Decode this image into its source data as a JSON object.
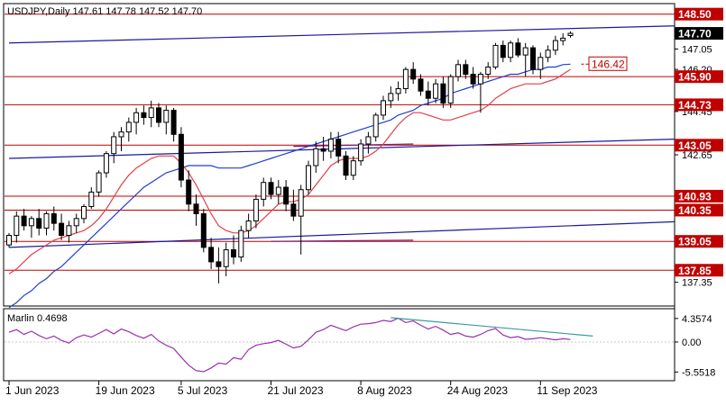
{
  "chart_data": {
    "type": "candlestick",
    "symbol_header": "USDJPY,Daily  147.61 147.78 147.52 147.70",
    "price_axis": {
      "min": 136.4,
      "max": 148.9,
      "ticks": [
        "147.05",
        "146.20",
        "144.45",
        "142.65",
        "137.35"
      ],
      "tick_values": [
        147.05,
        146.2,
        144.45,
        142.65,
        137.35
      ]
    },
    "current_price": {
      "label": "147.70",
      "value": 147.7
    },
    "horizontal_levels": [
      {
        "label": "148.50",
        "value": 148.5
      },
      {
        "label": "145.90",
        "value": 145.9
      },
      {
        "label": "144.73",
        "value": 144.73
      },
      {
        "label": "143.05",
        "value": 143.05
      },
      {
        "label": "140.93",
        "value": 140.93
      },
      {
        "label": "140.35",
        "value": 140.35
      },
      {
        "label": "139.05",
        "value": 139.05
      },
      {
        "label": "137.85",
        "value": 137.85
      }
    ],
    "target_annotation": {
      "label": "146.42",
      "value": 146.42
    },
    "date_labels": [
      {
        "label": "1 Jun 2023",
        "index": 0
      },
      {
        "label": "19 Jun 2023",
        "index": 12
      },
      {
        "label": "5 Jul 2023",
        "index": 23
      },
      {
        "label": "21 Jul 2023",
        "index": 35
      },
      {
        "label": "8 Aug 2023",
        "index": 47
      },
      {
        "label": "24 Aug 2023",
        "index": 59
      },
      {
        "label": "11 Sep 2023",
        "index": 71
      }
    ],
    "candles": [
      [
        138.9,
        139.4,
        138.8,
        139.3
      ],
      [
        139.3,
        140.3,
        139.0,
        140.1
      ],
      [
        140.1,
        140.4,
        139.5,
        139.7
      ],
      [
        139.7,
        140.1,
        139.2,
        140.0
      ],
      [
        140.0,
        140.4,
        139.3,
        139.6
      ],
      [
        139.6,
        140.3,
        139.3,
        140.2
      ],
      [
        140.2,
        140.5,
        139.5,
        139.8
      ],
      [
        139.8,
        140.2,
        139.1,
        139.3
      ],
      [
        139.3,
        139.9,
        139.0,
        139.7
      ],
      [
        139.7,
        140.2,
        139.4,
        140.0
      ],
      [
        140.0,
        140.6,
        139.8,
        140.5
      ],
      [
        140.5,
        141.3,
        140.4,
        141.1
      ],
      [
        141.1,
        142.0,
        140.9,
        141.9
      ],
      [
        141.9,
        142.8,
        141.7,
        142.7
      ],
      [
        142.7,
        143.6,
        142.3,
        143.4
      ],
      [
        143.4,
        143.8,
        142.8,
        143.6
      ],
      [
        143.6,
        144.2,
        143.2,
        144.0
      ],
      [
        144.0,
        144.6,
        143.5,
        144.4
      ],
      [
        144.4,
        144.7,
        143.9,
        144.2
      ],
      [
        144.2,
        144.9,
        143.8,
        144.6
      ],
      [
        144.6,
        144.8,
        143.8,
        144.0
      ],
      [
        144.0,
        144.7,
        143.5,
        144.5
      ],
      [
        144.5,
        144.6,
        143.2,
        143.5
      ],
      [
        143.5,
        143.8,
        141.3,
        141.6
      ],
      [
        141.6,
        142.0,
        140.3,
        140.6
      ],
      [
        140.6,
        141.0,
        139.7,
        140.2
      ],
      [
        140.2,
        140.4,
        138.6,
        138.8
      ],
      [
        138.8,
        139.2,
        137.9,
        138.2
      ],
      [
        138.2,
        138.8,
        137.3,
        138.0
      ],
      [
        138.0,
        139.0,
        137.6,
        138.7
      ],
      [
        138.7,
        139.3,
        138.1,
        138.4
      ],
      [
        138.4,
        139.7,
        138.2,
        139.5
      ],
      [
        139.5,
        140.2,
        139.2,
        139.9
      ],
      [
        139.9,
        141.0,
        139.6,
        140.8
      ],
      [
        140.8,
        141.7,
        140.5,
        141.5
      ],
      [
        141.5,
        141.7,
        140.8,
        141.0
      ],
      [
        141.0,
        141.6,
        140.6,
        141.3
      ],
      [
        141.3,
        141.6,
        140.3,
        140.6
      ],
      [
        140.6,
        141.2,
        139.9,
        140.1
      ],
      [
        140.1,
        141.4,
        138.5,
        141.2
      ],
      [
        141.2,
        142.4,
        141.0,
        142.2
      ],
      [
        142.2,
        143.2,
        141.9,
        142.9
      ],
      [
        142.9,
        143.4,
        142.4,
        142.8
      ],
      [
        142.8,
        143.6,
        142.5,
        143.3
      ],
      [
        143.3,
        143.6,
        142.3,
        142.6
      ],
      [
        142.6,
        142.8,
        141.6,
        141.8
      ],
      [
        141.8,
        142.6,
        141.6,
        142.4
      ],
      [
        142.4,
        143.3,
        142.2,
        143.1
      ],
      [
        143.1,
        143.6,
        142.7,
        143.4
      ],
      [
        143.4,
        144.4,
        143.2,
        144.3
      ],
      [
        144.3,
        145.1,
        144.1,
        144.9
      ],
      [
        144.9,
        145.5,
        144.6,
        145.2
      ],
      [
        145.2,
        145.7,
        144.9,
        145.4
      ],
      [
        145.4,
        146.3,
        145.2,
        146.2
      ],
      [
        146.2,
        146.5,
        145.6,
        145.8
      ],
      [
        145.8,
        146.0,
        145.1,
        145.3
      ],
      [
        145.3,
        145.7,
        144.7,
        145.0
      ],
      [
        145.0,
        145.8,
        144.8,
        145.6
      ],
      [
        145.6,
        145.9,
        144.6,
        144.8
      ],
      [
        144.8,
        146.0,
        144.6,
        145.9
      ],
      [
        145.9,
        146.6,
        145.7,
        146.4
      ],
      [
        146.4,
        146.6,
        145.8,
        146.0
      ],
      [
        146.0,
        146.3,
        145.4,
        145.6
      ],
      [
        145.6,
        146.1,
        144.4,
        146.0
      ],
      [
        146.0,
        146.5,
        145.8,
        146.3
      ],
      [
        146.3,
        147.3,
        146.2,
        147.2
      ],
      [
        147.2,
        147.4,
        146.5,
        146.7
      ],
      [
        146.7,
        147.4,
        146.5,
        147.3
      ],
      [
        147.3,
        147.5,
        146.7,
        146.8
      ],
      [
        146.8,
        147.3,
        145.9,
        147.1
      ],
      [
        147.1,
        147.2,
        146.0,
        146.2
      ],
      [
        146.2,
        146.9,
        145.8,
        146.7
      ],
      [
        146.7,
        147.2,
        146.5,
        147.0
      ],
      [
        147.0,
        147.6,
        146.8,
        147.4
      ],
      [
        147.4,
        147.7,
        147.2,
        147.5
      ],
      [
        147.61,
        147.78,
        147.52,
        147.7
      ]
    ],
    "red_ma": [
      137.7,
      137.9,
      138.2,
      138.5,
      138.7,
      138.9,
      139.1,
      139.2,
      139.3,
      139.4,
      139.5,
      139.7,
      140.0,
      140.4,
      140.9,
      141.4,
      141.8,
      142.1,
      142.3,
      142.5,
      142.6,
      142.6,
      142.6,
      142.3,
      141.9,
      141.4,
      140.8,
      140.2,
      139.7,
      139.5,
      139.4,
      139.4,
      139.5,
      139.7,
      140.0,
      140.3,
      140.6,
      140.7,
      140.7,
      140.8,
      141.0,
      141.4,
      141.8,
      142.2,
      142.4,
      142.5,
      142.5,
      142.5,
      142.6,
      142.8,
      143.1,
      143.5,
      143.9,
      144.2,
      144.4,
      144.4,
      144.3,
      144.2,
      144.1,
      144.1,
      144.2,
      144.3,
      144.4,
      144.5,
      144.7,
      145.0,
      145.2,
      145.4,
      145.5,
      145.6,
      145.6,
      145.6,
      145.7,
      145.8,
      146.0,
      146.2
    ],
    "blue_ma": [
      136.3,
      136.5,
      136.8,
      137.0,
      137.3,
      137.5,
      137.8,
      138.0,
      138.3,
      138.6,
      138.9,
      139.2,
      139.5,
      139.8,
      140.1,
      140.4,
      140.7,
      141.0,
      141.3,
      141.5,
      141.7,
      141.9,
      142.0,
      142.1,
      142.2,
      142.2,
      142.2,
      142.2,
      142.1,
      142.1,
      142.1,
      142.1,
      142.2,
      142.3,
      142.4,
      142.5,
      142.6,
      142.7,
      142.8,
      142.9,
      143.0,
      143.1,
      143.2,
      143.3,
      143.4,
      143.5,
      143.6,
      143.7,
      143.8,
      143.9,
      144.0,
      144.1,
      144.3,
      144.4,
      144.5,
      144.7,
      144.8,
      144.9,
      145.0,
      145.2,
      145.3,
      145.4,
      145.5,
      145.6,
      145.7,
      145.8,
      145.9,
      146.0,
      146.0,
      146.1,
      146.2,
      146.2,
      146.3,
      146.3,
      146.4,
      146.42
    ],
    "trend_lines": [
      {
        "from": [
          0,
          147.3
        ],
        "to": [
          100,
          148.1
        ],
        "color": "#1a1a9c"
      },
      {
        "from": [
          0,
          142.5
        ],
        "to": [
          100,
          143.4
        ],
        "color": "#1a1a9c"
      },
      {
        "from": [
          0,
          138.8
        ],
        "to": [
          100,
          140.0
        ],
        "color": "#1a1a9c"
      },
      {
        "from": [
          38,
          143.0
        ],
        "to": [
          54,
          143.1
        ],
        "color": "#7a1f7a"
      },
      {
        "from": [
          35,
          139.05
        ],
        "to": [
          54,
          139.1
        ],
        "color": "#7a1f7a"
      }
    ],
    "indicator": {
      "name": "Marlin",
      "label": "Marlin 0.4698",
      "ticks": [
        "4.3574",
        "0.00",
        "-5.5518"
      ],
      "tick_values": [
        4.3574,
        0.0,
        -5.5518
      ],
      "range": [
        -7.0,
        6.0
      ],
      "values": [
        1.8,
        2.3,
        1.4,
        2.0,
        1.2,
        0.6,
        1.1,
        0.3,
        -0.2,
        0.8,
        1.3,
        0.9,
        1.6,
        2.3,
        1.5,
        2.4,
        1.9,
        1.2,
        0.7,
        1.4,
        0.2,
        -0.6,
        -1.2,
        -2.8,
        -4.3,
        -5.3,
        -5.5,
        -4.8,
        -3.9,
        -4.1,
        -2.9,
        -3.2,
        -1.4,
        -0.6,
        -0.3,
        -0.1,
        0.3,
        -0.4,
        -1.1,
        -0.8,
        0.4,
        1.8,
        2.3,
        3.1,
        2.6,
        2.1,
        2.8,
        3.3,
        3.4,
        3.6,
        4.0,
        3.8,
        4.4,
        3.6,
        3.9,
        3.1,
        2.4,
        2.9,
        2.2,
        1.4,
        1.7,
        1.1,
        0.9,
        1.4,
        2.1,
        2.5,
        1.3,
        0.8,
        1.0,
        0.5,
        0.6,
        0.8,
        0.6,
        0.4,
        0.6,
        0.47
      ],
      "divergence_line": {
        "from": [
          51,
          4.5
        ],
        "to": [
          78,
          1.1
        ]
      }
    },
    "colors": {
      "bull": "#ffffff",
      "bear": "#000000",
      "red_level": "#c00000",
      "red_ma": "#e0404a",
      "blue_ma": "#1f3fcf",
      "trend": "#1a1a9c",
      "marlin": "#9b2fae",
      "divergence": "#3a9c9c"
    }
  }
}
